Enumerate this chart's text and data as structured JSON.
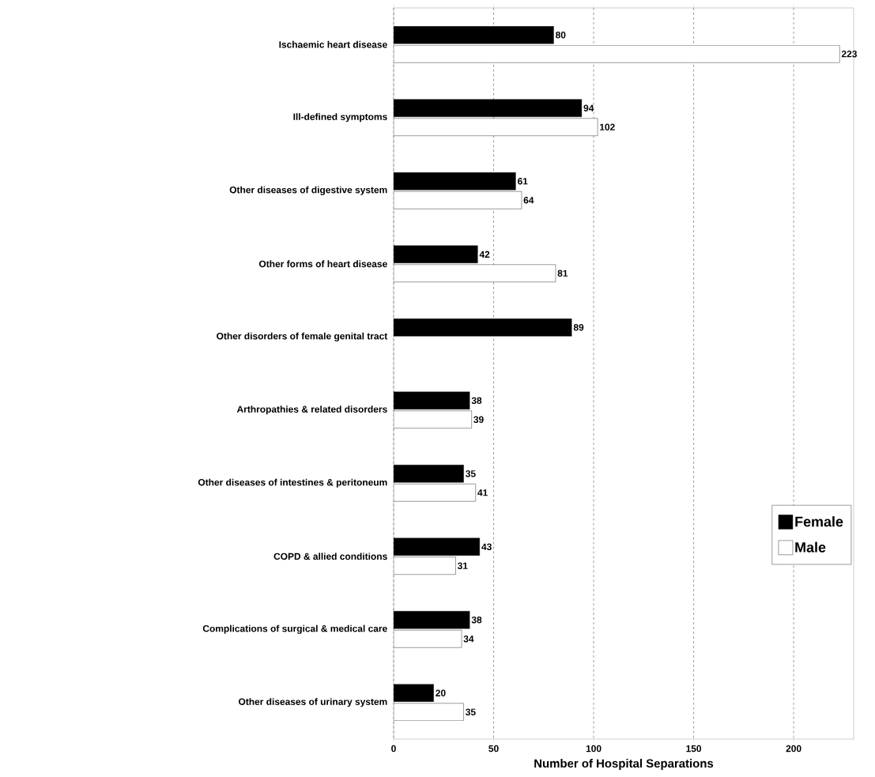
{
  "chart_data": {
    "type": "bar",
    "orientation": "horizontal",
    "xlabel": "Number of Hospital Separations",
    "categories": [
      "Ischaemic heart disease",
      "Ill-defined symptoms",
      "Other diseases of digestive system",
      "Other forms of heart disease",
      "Other disorders of female genital tract",
      "Arthropathies & related disorders",
      "Other diseases of intestines & peritoneum",
      "COPD & allied conditions",
      "Complications of surgical & medical care",
      "Other diseases of urinary system"
    ],
    "series": [
      {
        "name": "Female",
        "color": "#000000",
        "values": [
          80,
          94,
          61,
          42,
          89,
          38,
          35,
          43,
          38,
          20
        ]
      },
      {
        "name": "Male",
        "color": "#ffffff",
        "values": [
          223,
          102,
          64,
          81,
          null,
          39,
          41,
          31,
          34,
          35
        ]
      }
    ],
    "xlim": [
      0,
      230
    ],
    "xticks": [
      0,
      50,
      100,
      150,
      200
    ],
    "grid": "x",
    "legend": "right",
    "data_labels": true
  }
}
